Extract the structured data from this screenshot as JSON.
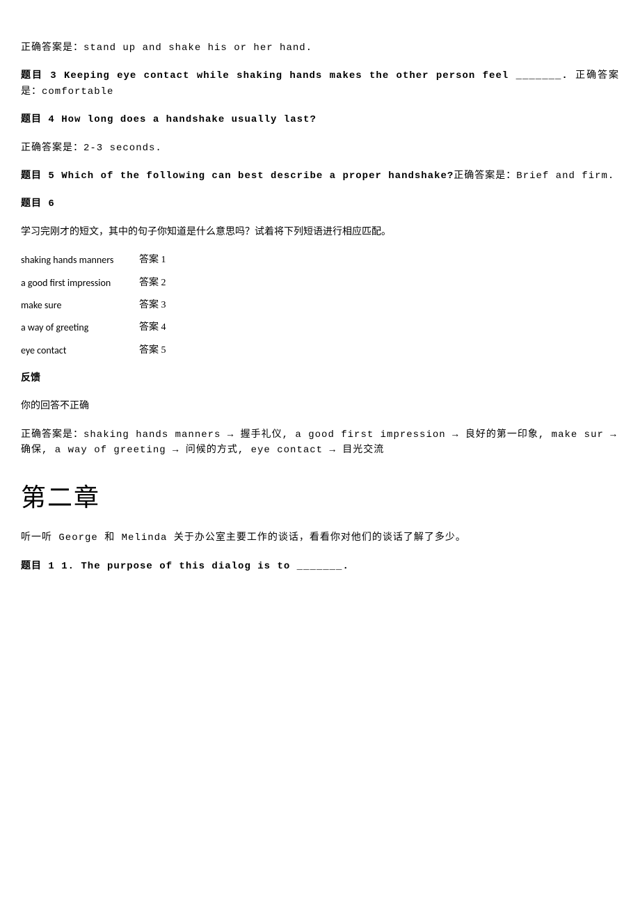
{
  "answer_prefix": "正确答案是：",
  "q2": {
    "answer": "stand up and shake his or her hand."
  },
  "q3": {
    "label": "题目 3 ",
    "text": "Keeping eye contact while shaking hands makes the other person feel _______.",
    "answer": "comfortable"
  },
  "q4": {
    "label": "题目 4 How long does a handshake usually last?",
    "answer": "2-3 seconds."
  },
  "q5": {
    "label": "题目 5 Which of the following can best describe a proper handshake?",
    "answer": "Brief and firm."
  },
  "q6": {
    "label": "题目 6",
    "instruction": "学习完刚才的短文，其中的句子你知道是什么意思吗？试着将下列短语进行相应匹配。",
    "answer_label": "答案",
    "matches": [
      {
        "left": "shaking hands manners",
        "num": "1"
      },
      {
        "left": "a good first impression",
        "num": "2"
      },
      {
        "left": "make sure",
        "num": "3"
      },
      {
        "left": "a way of greeting",
        "num": "4"
      },
      {
        "left": "eye contact",
        "num": "5"
      }
    ]
  },
  "feedback": {
    "title": "反馈",
    "incorrect": "你的回答不正确",
    "correct_answer": "shaking hands manners → 握手礼仪, a good first impression → 良好的第一印象, make sur → 确保, a way of greeting → 问候的方式, eye contact → 目光交流"
  },
  "chapter2": {
    "heading": "第二章",
    "instruction": "听一听 George 和 Melinda 关于办公室主要工作的谈话，看看你对他们的谈话了解了多少。",
    "q1": "题目 1 1. The purpose of this dialog is to _______."
  }
}
